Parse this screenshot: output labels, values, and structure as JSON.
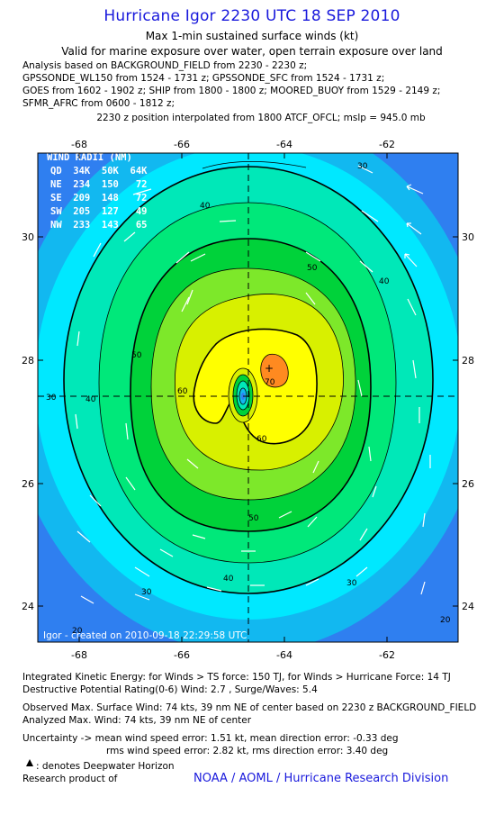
{
  "title": "Hurricane Igor 2230 UTC 18 SEP 2010",
  "subtitle1": "Max 1-min sustained surface winds (kt)",
  "subtitle2": "Valid for marine exposure over water, open terrain exposure over land",
  "analysis_lines": [
    "Analysis based on BACKGROUND_FIELD from 2230 - 2230 z;",
    "GPSSONDE_WL150 from 1524 - 1731 z; GPSSONDE_SFC from 1524 - 1731 z;",
    "GOES from 1602 - 1902 z; SHIP from 1800 - 1800 z; MOORED_BUOY from 1529 - 2149 z;",
    "SFMR_AFRC from 0600 - 1812 z;"
  ],
  "position_note": "2230 z position interpolated from 1800 ATCF_OFCL; mslp = 945.0 mb",
  "map": {
    "lon_ticks": [
      "-68",
      "-66",
      "-64",
      "-62"
    ],
    "lat_ticks": [
      "30",
      "28",
      "26",
      "24"
    ],
    "contour_labels": [
      "20",
      "30",
      "40",
      "50",
      "60",
      "70"
    ],
    "wind_radii_header": "WIND RADII (NM)",
    "wind_radii_cols": "QD  34K  50K  64K",
    "wind_radii_rows": [
      "NE  234  150   72",
      "SE  209  148   72",
      "SW  205  127   49",
      "NW  233  143   65"
    ],
    "created": "Igor - created on 2010-09-18 22:29:58 UTC",
    "colors": {
      "c_lt20": "#2f7ff0",
      "c_20": "#12b8f0",
      "c_30": "#00e8ff",
      "c_40": "#00e8b8",
      "c_45": "#00e87a",
      "c_50": "#00d23a",
      "c_55": "#7de82a",
      "c_60": "#d8f000",
      "c_65": "#ffff00",
      "c_70": "#ff8a20"
    }
  },
  "footer": {
    "ike": "Integrated Kinetic Energy:  for Winds > TS force: 150 TJ,  for Winds > Hurricane Force: 14 TJ",
    "dpr": "Destructive Potential Rating(0-6)   Wind: 2.7 , Surge/Waves: 5.4",
    "observed": "Observed Max. Surface Wind: 74 kts, 39 nm NE of center based on 2230 z BACKGROUND_FIELD",
    "analyzed": "Analyzed Max. Wind: 74 kts, 39 nm NE of center",
    "uncertainty1": "Uncertainty -> mean wind speed error: 1.51 kt,   mean direction error:  -0.33 deg",
    "uncertainty2": "rms wind speed error: 2.82 kt,   rms direction error: 3.40 deg",
    "deepwater": ": denotes Deepwater Horizon",
    "research": "Research product of",
    "credit": "NOAA / AOML / Hurricane Research Division"
  }
}
